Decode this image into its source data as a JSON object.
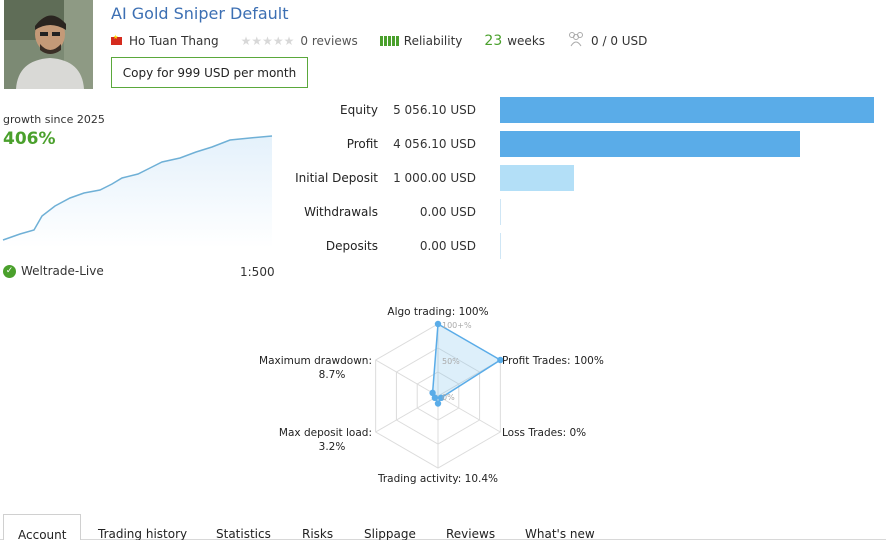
{
  "header": {
    "title": "AI Gold Sniper Default",
    "author": "Ho Tuan Thang",
    "reviews": "0 reviews",
    "reliability": "Reliability",
    "weeks_num": "23",
    "weeks_label": "weeks",
    "subscribers": "0 / 0 USD",
    "copy_button": "Copy for 999 USD per month",
    "colors": {
      "title": "#3c6fb3",
      "accent_green": "#4aa02c"
    }
  },
  "growth": {
    "label": "growth since 2025",
    "value": "406%",
    "broker": "Weltrade-Live",
    "leverage": "1:500"
  },
  "financials": [
    {
      "label": "Equity",
      "value": "5 056.10 USD",
      "amount": 5056.1,
      "color": "#5aace8"
    },
    {
      "label": "Profit",
      "value": "4 056.10 USD",
      "amount": 4056.1,
      "color": "#5aace8"
    },
    {
      "label": "Initial Deposit",
      "value": "1 000.00 USD",
      "amount": 1000.0,
      "color": "#b3dff7"
    },
    {
      "label": "Withdrawals",
      "value": "0.00 USD",
      "amount": 0,
      "color": "#b3dff7"
    },
    {
      "label": "Deposits",
      "value": "0.00 USD",
      "amount": 0,
      "color": "#b3dff7"
    }
  ],
  "chart_data": {
    "type": "radar",
    "axes": [
      {
        "label": "Algo trading: 100%",
        "value": 100
      },
      {
        "label": "Profit Trades: 100%",
        "value": 100
      },
      {
        "label": "Loss Trades: 0%",
        "value": 0
      },
      {
        "label": "Trading activity: 10.4%",
        "value": 10.4
      },
      {
        "label": "Max deposit load:",
        "label2": "3.2%",
        "value": 3.2
      },
      {
        "label": "Maximum drawdown:",
        "label2": "8.7%",
        "value": 8.7
      }
    ],
    "ring_labels": [
      "100+%",
      "50%",
      "0%"
    ],
    "range": [
      0,
      100
    ]
  },
  "tabs": [
    "Account",
    "Trading history",
    "Statistics",
    "Risks",
    "Slippage",
    "Reviews",
    "What's new"
  ]
}
